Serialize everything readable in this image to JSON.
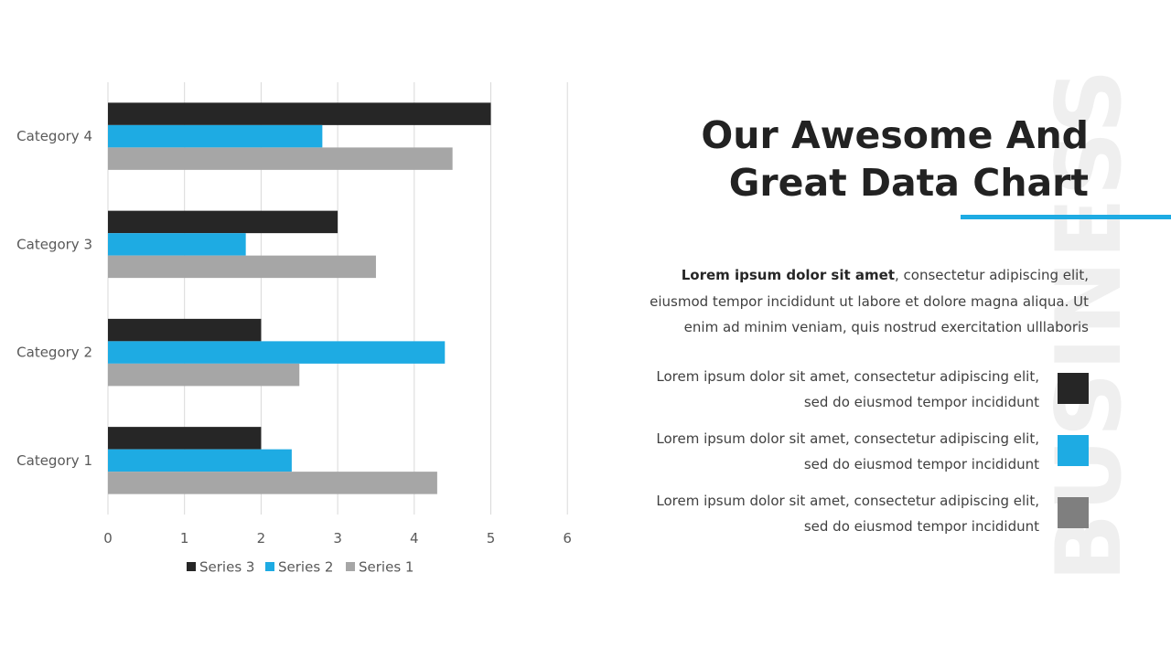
{
  "chart_data": {
    "type": "bar",
    "orientation": "horizontal",
    "categories": [
      "Category 1",
      "Category 2",
      "Category 3",
      "Category 4"
    ],
    "series": [
      {
        "name": "Series 3",
        "color": "#262626",
        "values": [
          2,
          2,
          3,
          5
        ]
      },
      {
        "name": "Series 2",
        "color": "#1eabe3",
        "values": [
          2.4,
          4.4,
          1.8,
          2.8
        ]
      },
      {
        "name": "Series 1",
        "color": "#a6a6a6",
        "values": [
          4.3,
          2.5,
          3.5,
          4.5
        ]
      }
    ],
    "xlim": [
      0,
      6
    ],
    "xticks": [
      "0",
      "1",
      "2",
      "3",
      "4",
      "5",
      "6"
    ],
    "grid": true,
    "legend_position": "bottom"
  },
  "slide": {
    "watermark": "BUSINESS",
    "title_lines": [
      "Our Awesome And",
      "Great Data Chart"
    ],
    "intro_bold": "Lorem ipsum dolor sit amet",
    "intro_rest_1": ", consectetur adipiscing elit,",
    "intro_line_2": "eiusmod tempor incididunt ut labore et dolore magna aliqua. Ut",
    "intro_line_3": "enim ad minim veniam, quis nostrud exercitation ulllaboris",
    "legend_items": [
      {
        "line1": "Lorem ipsum dolor sit amet, consectetur adipiscing elit,",
        "line2": "sed do eiusmod tempor incididunt",
        "color": "#262626"
      },
      {
        "line1": "Lorem ipsum dolor sit amet, consectetur adipiscing elit,",
        "line2": "sed do eiusmod tempor incididunt",
        "color": "#1eabe3"
      },
      {
        "line1": "Lorem ipsum dolor sit amet, consectetur adipiscing elit,",
        "line2": "sed do eiusmod tempor incididunt",
        "color": "#7f7f7f"
      }
    ]
  }
}
